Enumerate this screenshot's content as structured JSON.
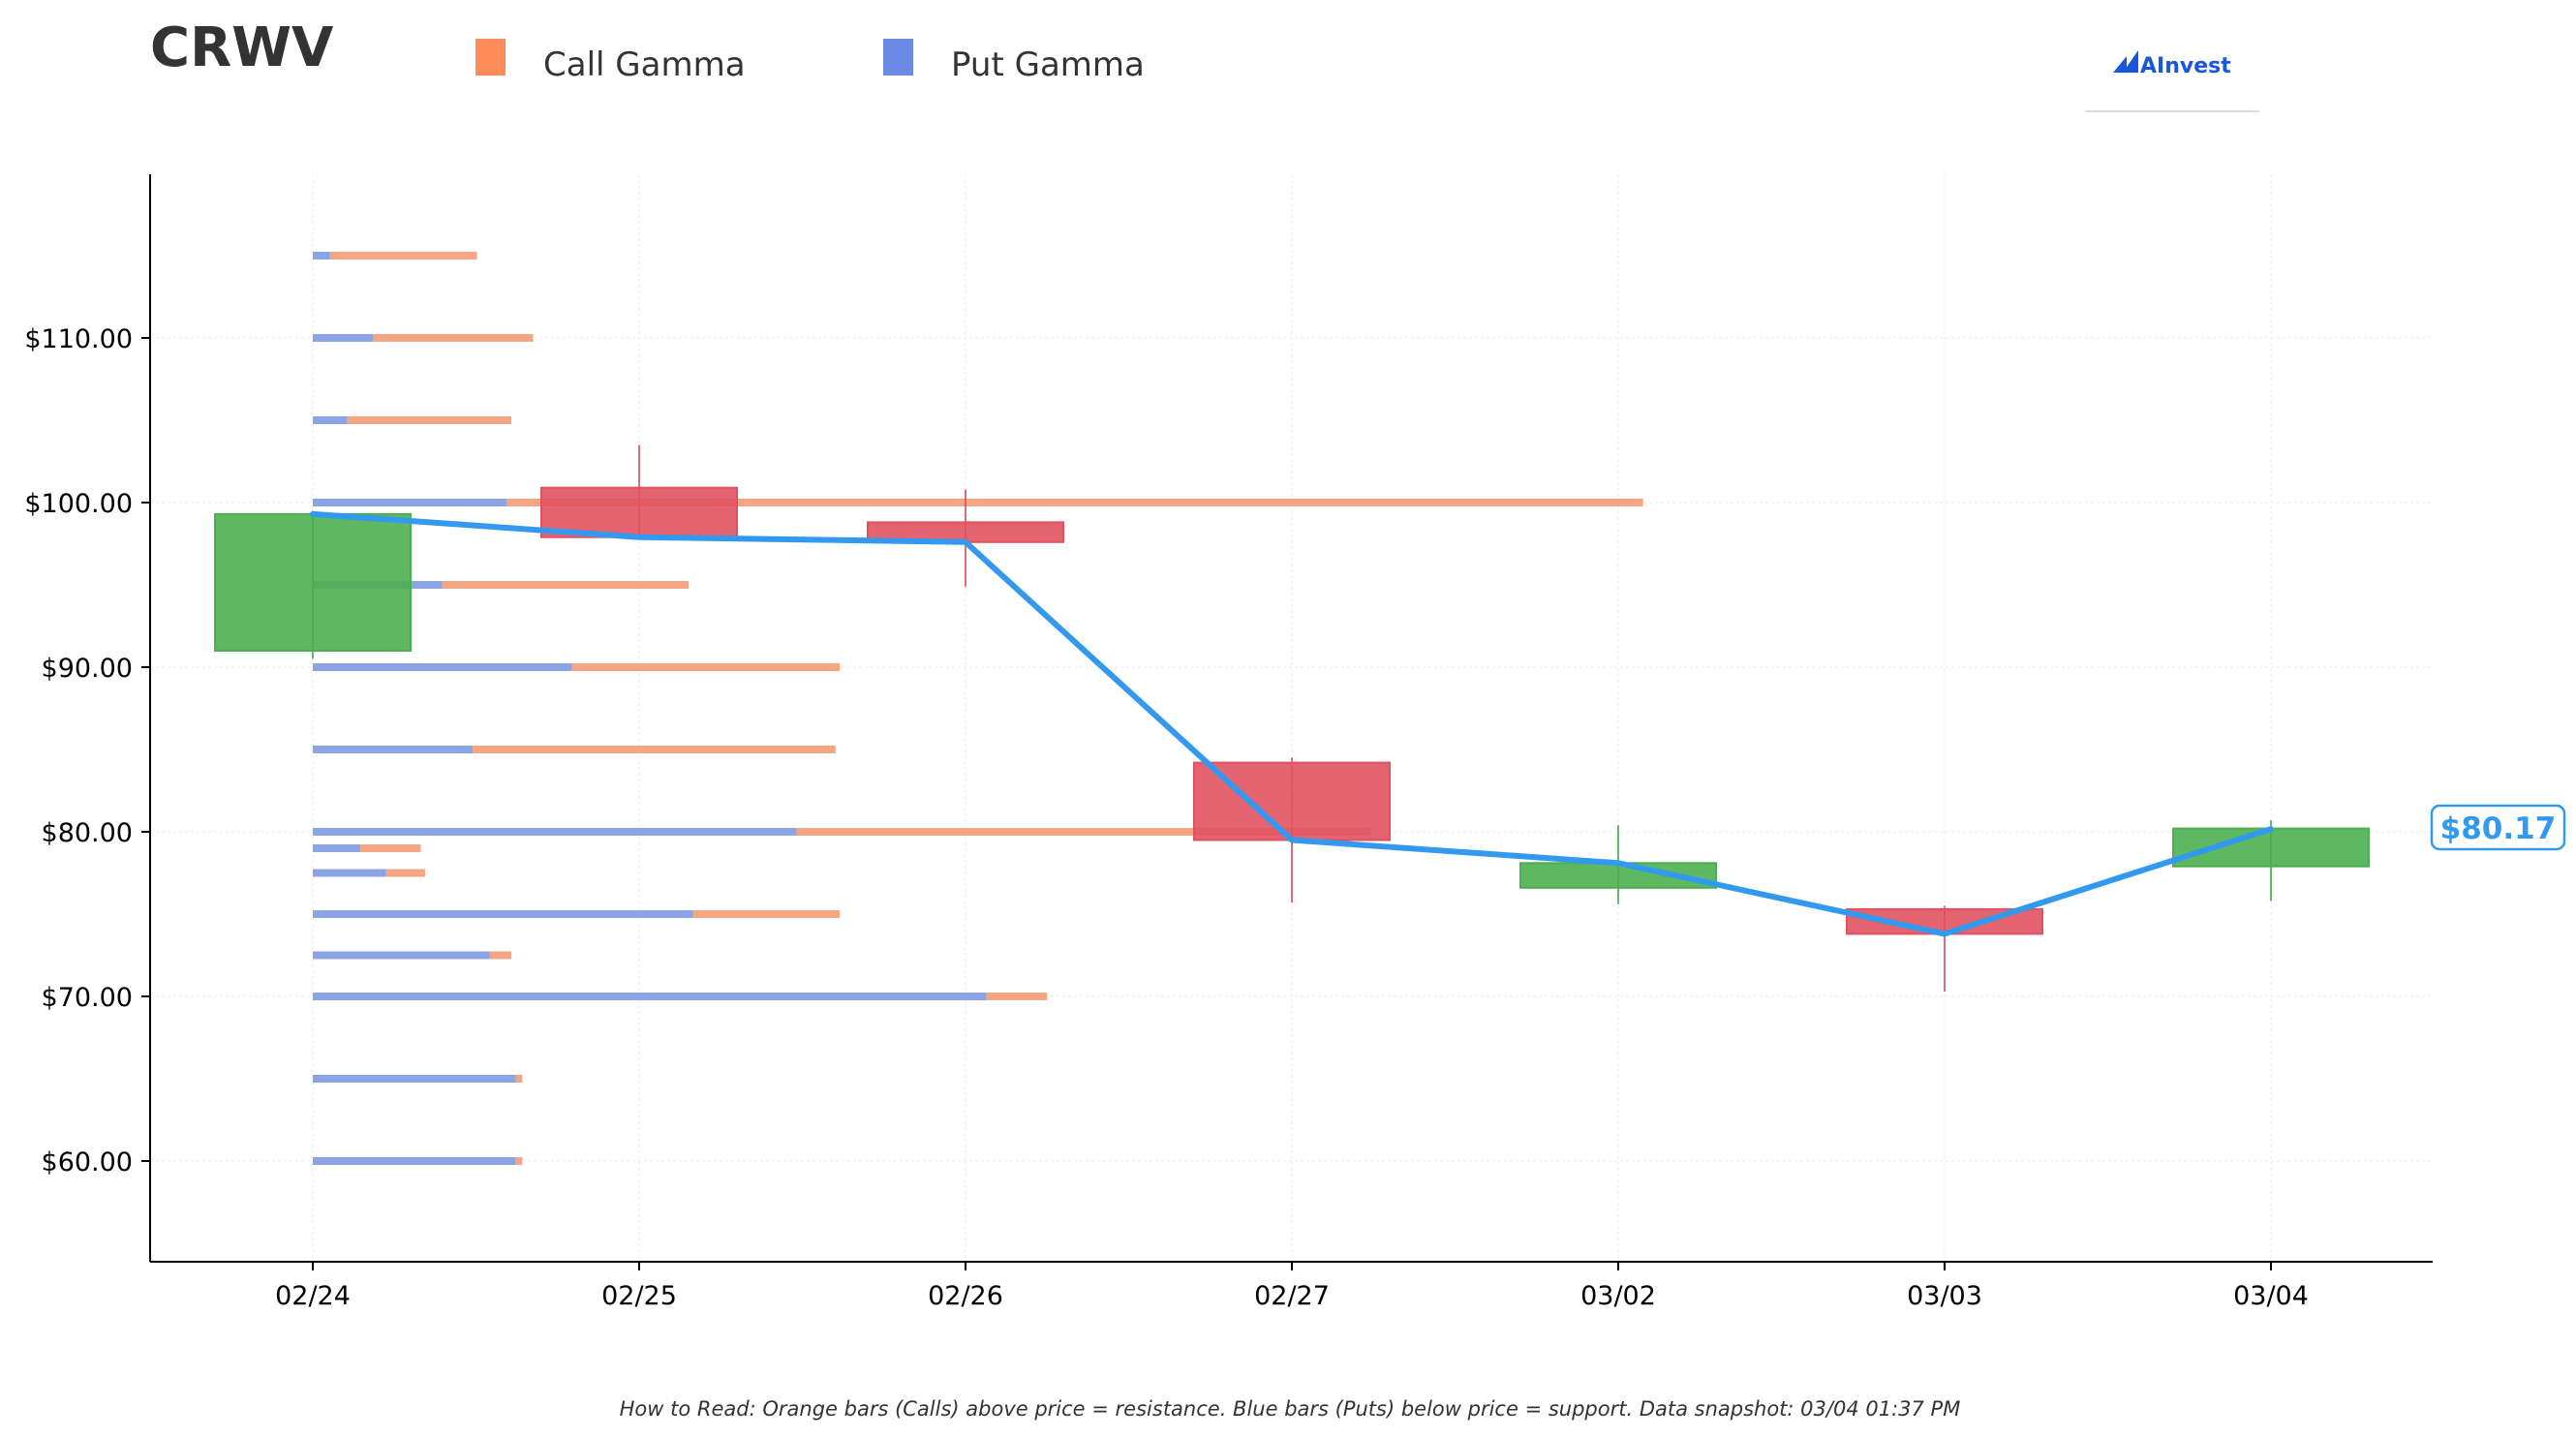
{
  "ticker": "CRWV",
  "logo_text": "AInvest",
  "footnote": "How to Read: Orange bars (Calls) above price = resistance. Blue bars (Puts) below price = support. Data snapshot: 03/04 01:37 PM",
  "colors": {
    "call": "#f4a582",
    "call_legend": "#ff8c5a",
    "put": "#8ba4e6",
    "put_legend": "#6a8ae6",
    "up_candle": "#4caf50",
    "down_candle": "#e05260",
    "price_line": "#3399ee",
    "logo": "#1a56db"
  },
  "chart_data": {
    "type": "candlestick",
    "legend": [
      {
        "name": "Call Gamma",
        "color": "#ff8c5a"
      },
      {
        "name": "Put Gamma",
        "color": "#6a8ae6"
      }
    ],
    "ylim": [
      54,
      120
    ],
    "y_ticks": [
      60,
      70,
      80,
      90,
      100,
      110
    ],
    "y_tick_labels": [
      "$60.00",
      "$70.00",
      "$80.00",
      "$90.00",
      "$100.00",
      "$110.00"
    ],
    "categories": [
      "02/24",
      "02/25",
      "02/26",
      "02/27",
      "03/02",
      "03/03",
      "03/04"
    ],
    "candles": [
      {
        "date": "02/24",
        "open": 91.0,
        "high": 99.5,
        "low": 90.5,
        "close": 99.3
      },
      {
        "date": "02/25",
        "open": 100.9,
        "high": 103.5,
        "low": 97.8,
        "close": 97.9
      },
      {
        "date": "02/26",
        "open": 98.8,
        "high": 100.8,
        "low": 94.9,
        "close": 97.6
      },
      {
        "date": "02/27",
        "open": 84.2,
        "high": 84.5,
        "low": 75.7,
        "close": 79.5
      },
      {
        "date": "03/02",
        "open": 76.6,
        "high": 80.4,
        "low": 75.6,
        "close": 78.1
      },
      {
        "date": "03/03",
        "open": 75.3,
        "high": 75.5,
        "low": 70.3,
        "close": 73.8
      },
      {
        "date": "03/04",
        "open": 77.9,
        "high": 80.7,
        "low": 75.8,
        "close": 80.2
      }
    ],
    "price_line": [
      99.3,
      97.9,
      97.6,
      79.5,
      78.1,
      73.8,
      80.17
    ],
    "current_price": 80.17,
    "current_price_label": "$80.17",
    "gamma_bars": [
      {
        "strike": 115,
        "put": 0.4,
        "call": 3.4
      },
      {
        "strike": 110,
        "put": 1.4,
        "call": 3.7
      },
      {
        "strike": 105,
        "put": 0.8,
        "call": 3.8
      },
      {
        "strike": 100,
        "put": 4.5,
        "call": 26.3
      },
      {
        "strike": 95,
        "put": 3.0,
        "call": 5.7
      },
      {
        "strike": 90,
        "put": 6.0,
        "call": 6.2
      },
      {
        "strike": 85,
        "put": 3.7,
        "call": 8.4
      },
      {
        "strike": 80,
        "put": 11.2,
        "call": 13.3
      },
      {
        "strike": 79,
        "put": 1.1,
        "call": 1.4
      },
      {
        "strike": 77.5,
        "put": 1.7,
        "call": 0.9
      },
      {
        "strike": 75,
        "put": 8.8,
        "call": 3.4
      },
      {
        "strike": 72.5,
        "put": 4.1,
        "call": 0.5
      },
      {
        "strike": 70,
        "put": 15.6,
        "call": 1.4
      },
      {
        "strike": 65,
        "put": 4.7,
        "call": 0.15
      },
      {
        "strike": 60,
        "put": 4.7,
        "call": 0.15
      }
    ],
    "grid": true
  }
}
